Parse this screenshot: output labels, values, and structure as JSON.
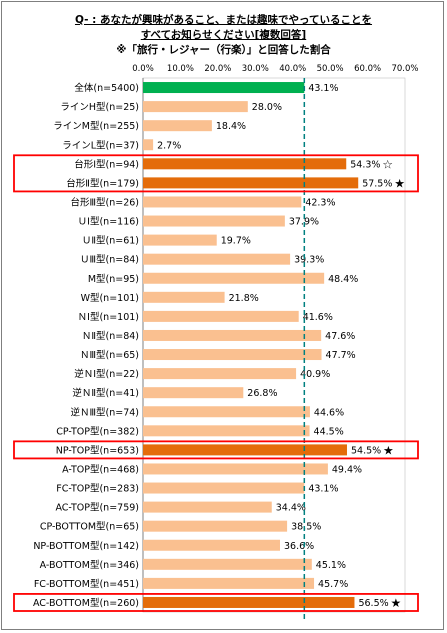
{
  "title": {
    "line1": "Q- : あなたが興味があること、または趣味でやっていることを",
    "line2": "すべてお知らせください[複数回答]",
    "line3": "※「旅行・レジャー（行楽）」と回答した割合"
  },
  "colors": {
    "overall": "#00b050",
    "normal": "#fac090",
    "highlight": "#e46c0a",
    "box": "#ff0000",
    "reference": "#008080"
  },
  "chart_data": {
    "type": "bar",
    "orientation": "horizontal",
    "xlim": [
      0,
      70
    ],
    "x_ticks": [
      "0.0%",
      "10.0%",
      "20.0%",
      "30.0%",
      "40.0%",
      "50.0%",
      "60.0%",
      "70.0%"
    ],
    "reference_line": 43.1,
    "categories": [
      "全体(n=5400)",
      "ラインH型(n=25)",
      "ラインM型(n=255)",
      "ラインL型(n=37)",
      "台形Ⅰ型(n=94)",
      "台形Ⅱ型(n=179)",
      "台形Ⅲ型(n=26)",
      "ＵⅠ型(n=116)",
      "ＵⅡ型(n=61)",
      "ＵⅢ型(n=84)",
      "M型(n=95)",
      "W型(n=101)",
      "ＮⅠ型(n=101)",
      "ＮⅡ型(n=84)",
      "ＮⅢ型(n=65)",
      "逆ＮⅠ型(n=22)",
      "逆ＮⅡ型(n=41)",
      "逆ＮⅢ型(n=74)",
      "CP-TOP型(n=382)",
      "NP-TOP型(n=653)",
      "A-TOP型(n=468)",
      "FC-TOP型(n=283)",
      "AC-TOP型(n=759)",
      "CP-BOTTOM型(n=65)",
      "NP-BOTTOM型(n=142)",
      "A-BOTTOM型(n=346)",
      "FC-BOTTOM型(n=451)",
      "AC-BOTTOM型(n=260)"
    ],
    "values": [
      43.1,
      28.0,
      18.4,
      2.7,
      54.3,
      57.5,
      42.3,
      37.9,
      19.7,
      39.3,
      48.4,
      21.8,
      41.6,
      47.6,
      47.7,
      40.9,
      26.8,
      44.6,
      44.5,
      54.5,
      49.4,
      43.1,
      34.4,
      38.5,
      36.6,
      45.1,
      45.7,
      56.5
    ],
    "value_labels": [
      "43.1%",
      "28.0%",
      "18.4%",
      "2.7%",
      "54.3%",
      "57.5%",
      "42.3%",
      "37.9%",
      "19.7%",
      "39.3%",
      "48.4%",
      "21.8%",
      "41.6%",
      "47.6%",
      "47.7%",
      "40.9%",
      "26.8%",
      "44.6%",
      "44.5%",
      "54.5%",
      "49.4%",
      "43.1%",
      "34.4%",
      "38.5%",
      "36.6%",
      "45.1%",
      "45.7%",
      "56.5%"
    ],
    "highlighted": [
      4,
      5,
      19,
      27
    ],
    "boxed_groups": [
      [
        4,
        5
      ],
      [
        19
      ],
      [
        27
      ]
    ],
    "marks": [
      {
        "index": 4,
        "symbol": "☆"
      },
      {
        "index": 5,
        "symbol": "★"
      },
      {
        "index": 19,
        "symbol": "★"
      },
      {
        "index": 27,
        "symbol": "★"
      }
    ]
  }
}
